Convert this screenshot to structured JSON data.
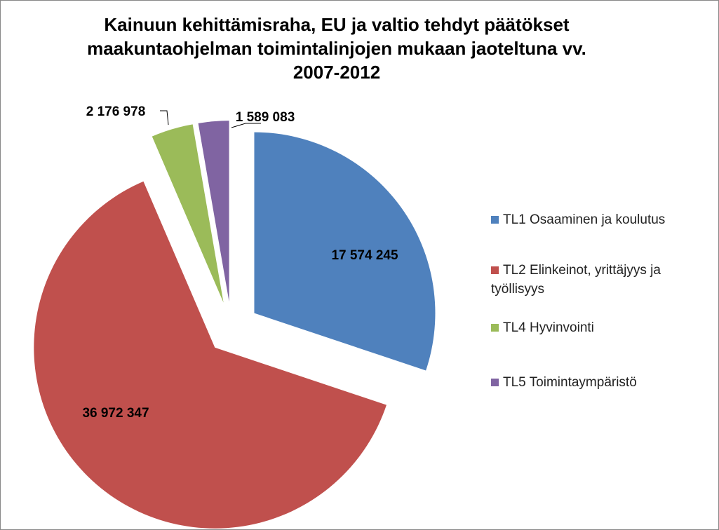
{
  "chart_data": {
    "type": "pie",
    "title": "Kainuun kehittämisraha, EU ja valtio tehdyt päätökset maakuntaohjelman toimintalinjojen mukaan jaoteltuna vv. 2007-2012",
    "categories": [
      "TL1 Osaaminen ja koulutus",
      "TL2 Elinkeinot, yrittäjyys ja työllisyys",
      "TL4 Hyvinvointi",
      "TL5 Toimintaympäristö"
    ],
    "values": [
      17574245,
      36972347,
      2176978,
      1589083
    ],
    "value_labels": [
      "17 574 245",
      "36 972 347",
      "2 176 978",
      "1 589 083"
    ],
    "colors": [
      "#4f81bd",
      "#c0504d",
      "#9bbb59",
      "#8064a2"
    ]
  }
}
